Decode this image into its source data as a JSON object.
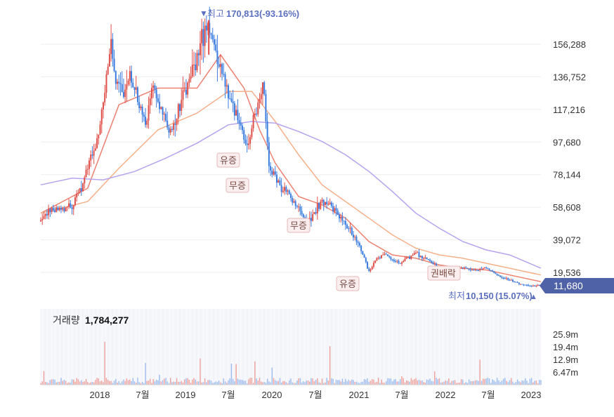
{
  "chart_data": {
    "type": "candlestick",
    "price_axis": {
      "ticks": [
        "156,288",
        "136,752",
        "117,216",
        "97,680",
        "78,144",
        "58,608",
        "39,072",
        "19,536"
      ],
      "values": [
        156288,
        136752,
        117216,
        97680,
        78144,
        58608,
        39072,
        19536
      ]
    },
    "x_axis": {
      "ticks": [
        "2018",
        "7월",
        "2019",
        "7월",
        "2020",
        "7월",
        "2021",
        "7월",
        "2022",
        "7월",
        "2023"
      ]
    },
    "high": {
      "label": "최고",
      "value": "170,813",
      "change": "(-93.16%)"
    },
    "low": {
      "label": "최저",
      "value": "10,150",
      "change": "(15.07%)"
    },
    "current_price": "11,680",
    "events": [
      "유증",
      "무증",
      "무증",
      "유증",
      "권배락"
    ],
    "volume": {
      "label": "거래량",
      "value": "1,784,277",
      "ticks": [
        "25.9m",
        "19.4m",
        "12.9m",
        "6.47m"
      ]
    },
    "price_path": [
      [
        0,
        50000
      ],
      [
        10,
        56000
      ],
      [
        20,
        58000
      ],
      [
        30,
        57000
      ],
      [
        40,
        60000
      ],
      [
        50,
        68000
      ],
      [
        60,
        82000
      ],
      [
        70,
        95000
      ],
      [
        80,
        120000
      ],
      [
        90,
        160000
      ],
      [
        95,
        135000
      ],
      [
        105,
        128000
      ],
      [
        115,
        135000
      ],
      [
        125,
        122000
      ],
      [
        135,
        110000
      ],
      [
        145,
        132000
      ],
      [
        155,
        116000
      ],
      [
        165,
        102000
      ],
      [
        175,
        115000
      ],
      [
        185,
        128000
      ],
      [
        195,
        140000
      ],
      [
        205,
        158000
      ],
      [
        215,
        170000
      ],
      [
        225,
        150000
      ],
      [
        235,
        135000
      ],
      [
        245,
        120000
      ],
      [
        255,
        108000
      ],
      [
        265,
        96000
      ],
      [
        275,
        118000
      ],
      [
        285,
        130000
      ],
      [
        292,
        85000
      ],
      [
        300,
        75000
      ],
      [
        310,
        70000
      ],
      [
        320,
        64000
      ],
      [
        330,
        57000
      ],
      [
        340,
        48000
      ],
      [
        350,
        56000
      ],
      [
        360,
        62000
      ],
      [
        370,
        60000
      ],
      [
        380,
        54000
      ],
      [
        390,
        48000
      ],
      [
        400,
        42000
      ],
      [
        410,
        33000
      ],
      [
        420,
        20000
      ],
      [
        430,
        28000
      ],
      [
        440,
        30000
      ],
      [
        450,
        27000
      ],
      [
        460,
        25000
      ],
      [
        470,
        28000
      ],
      [
        480,
        31000
      ],
      [
        490,
        28000
      ],
      [
        500,
        25000
      ],
      [
        510,
        22000
      ],
      [
        520,
        21000
      ],
      [
        530,
        21000
      ],
      [
        540,
        22000
      ],
      [
        550,
        21000
      ],
      [
        560,
        21000
      ],
      [
        570,
        22000
      ],
      [
        580,
        19000
      ],
      [
        590,
        16000
      ],
      [
        600,
        15000
      ],
      [
        610,
        13000
      ],
      [
        620,
        12000
      ],
      [
        630,
        11500
      ],
      [
        640,
        11680
      ]
    ],
    "ma_series": [
      {
        "color": "#ee8070",
        "points": [
          [
            0,
            55000
          ],
          [
            60,
            70000
          ],
          [
            100,
            120000
          ],
          [
            150,
            130000
          ],
          [
            200,
            130000
          ],
          [
            230,
            150000
          ],
          [
            260,
            130000
          ],
          [
            280,
            105000
          ],
          [
            300,
            85000
          ],
          [
            330,
            65000
          ],
          [
            360,
            60000
          ],
          [
            390,
            52000
          ],
          [
            420,
            38000
          ],
          [
            450,
            30000
          ],
          [
            480,
            28000
          ],
          [
            510,
            24000
          ],
          [
            540,
            22000
          ],
          [
            570,
            21000
          ],
          [
            600,
            18000
          ],
          [
            640,
            14000
          ]
        ]
      },
      {
        "color": "#f6b089",
        "points": [
          [
            0,
            55000
          ],
          [
            60,
            62000
          ],
          [
            100,
            82000
          ],
          [
            150,
            105000
          ],
          [
            200,
            115000
          ],
          [
            240,
            128000
          ],
          [
            270,
            128000
          ],
          [
            300,
            110000
          ],
          [
            330,
            90000
          ],
          [
            360,
            72000
          ],
          [
            390,
            62000
          ],
          [
            420,
            52000
          ],
          [
            450,
            42000
          ],
          [
            480,
            34000
          ],
          [
            510,
            30000
          ],
          [
            540,
            28000
          ],
          [
            570,
            25000
          ],
          [
            600,
            22000
          ],
          [
            640,
            18000
          ]
        ]
      },
      {
        "color": "#b6a3ef",
        "points": [
          [
            0,
            72000
          ],
          [
            40,
            76000
          ],
          [
            80,
            75000
          ],
          [
            120,
            80000
          ],
          [
            160,
            88000
          ],
          [
            200,
            97000
          ],
          [
            240,
            108000
          ],
          [
            270,
            110000
          ],
          [
            300,
            109000
          ],
          [
            330,
            104000
          ],
          [
            360,
            98000
          ],
          [
            390,
            90000
          ],
          [
            420,
            80000
          ],
          [
            450,
            68000
          ],
          [
            480,
            55000
          ],
          [
            510,
            46000
          ],
          [
            540,
            38000
          ],
          [
            570,
            33000
          ],
          [
            600,
            30000
          ],
          [
            640,
            22000
          ]
        ]
      }
    ]
  }
}
